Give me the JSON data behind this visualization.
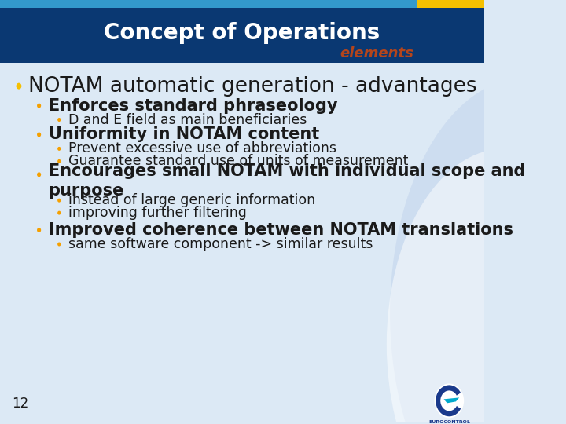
{
  "title": "Concept of Operations",
  "subtitle": "elements",
  "title_bg_color": "#0a3872",
  "subtitle_color": "#b5451b",
  "header_bar_color": "#3399cc",
  "yellow_rect_color": "#f5c000",
  "body_bg_color": "#dce9f5",
  "white_curve_color": "#e8f0f8",
  "page_number": "12",
  "bullet_color_l1": "#f5c000",
  "bullet_color_l2": "#f5a000",
  "bullet_color_l3": "#f5a000",
  "text_color": "#1a1a1a",
  "lines": [
    {
      "level": 1,
      "text": "NOTAM automatic generation - advantages",
      "bold": true,
      "size": 20
    },
    {
      "level": 2,
      "text": "Enforces standard phraseology",
      "bold": true,
      "size": 16
    },
    {
      "level": 3,
      "text": "D and E field as main beneficiaries",
      "bold": false,
      "size": 13
    },
    {
      "level": 2,
      "text": "Uniformity in NOTAM content",
      "bold": true,
      "size": 16
    },
    {
      "level": 3,
      "text": "Prevent excessive use of abbreviations",
      "bold": false,
      "size": 13
    },
    {
      "level": 3,
      "text": "Guarantee standard use of units of measurement",
      "bold": false,
      "size": 13
    },
    {
      "level": 2,
      "text": "Encourages small NOTAM with individual scope and\npurpose",
      "bold": true,
      "size": 16
    },
    {
      "level": 3,
      "text": "instead of large generic information",
      "bold": false,
      "size": 13
    },
    {
      "level": 3,
      "text": "improving further filtering",
      "bold": false,
      "size": 13
    },
    {
      "level": 2,
      "text": "Improved coherence between NOTAM translations",
      "bold": true,
      "size": 16
    },
    {
      "level": 3,
      "text": "same software component -> similar results",
      "bold": false,
      "size": 13
    }
  ]
}
